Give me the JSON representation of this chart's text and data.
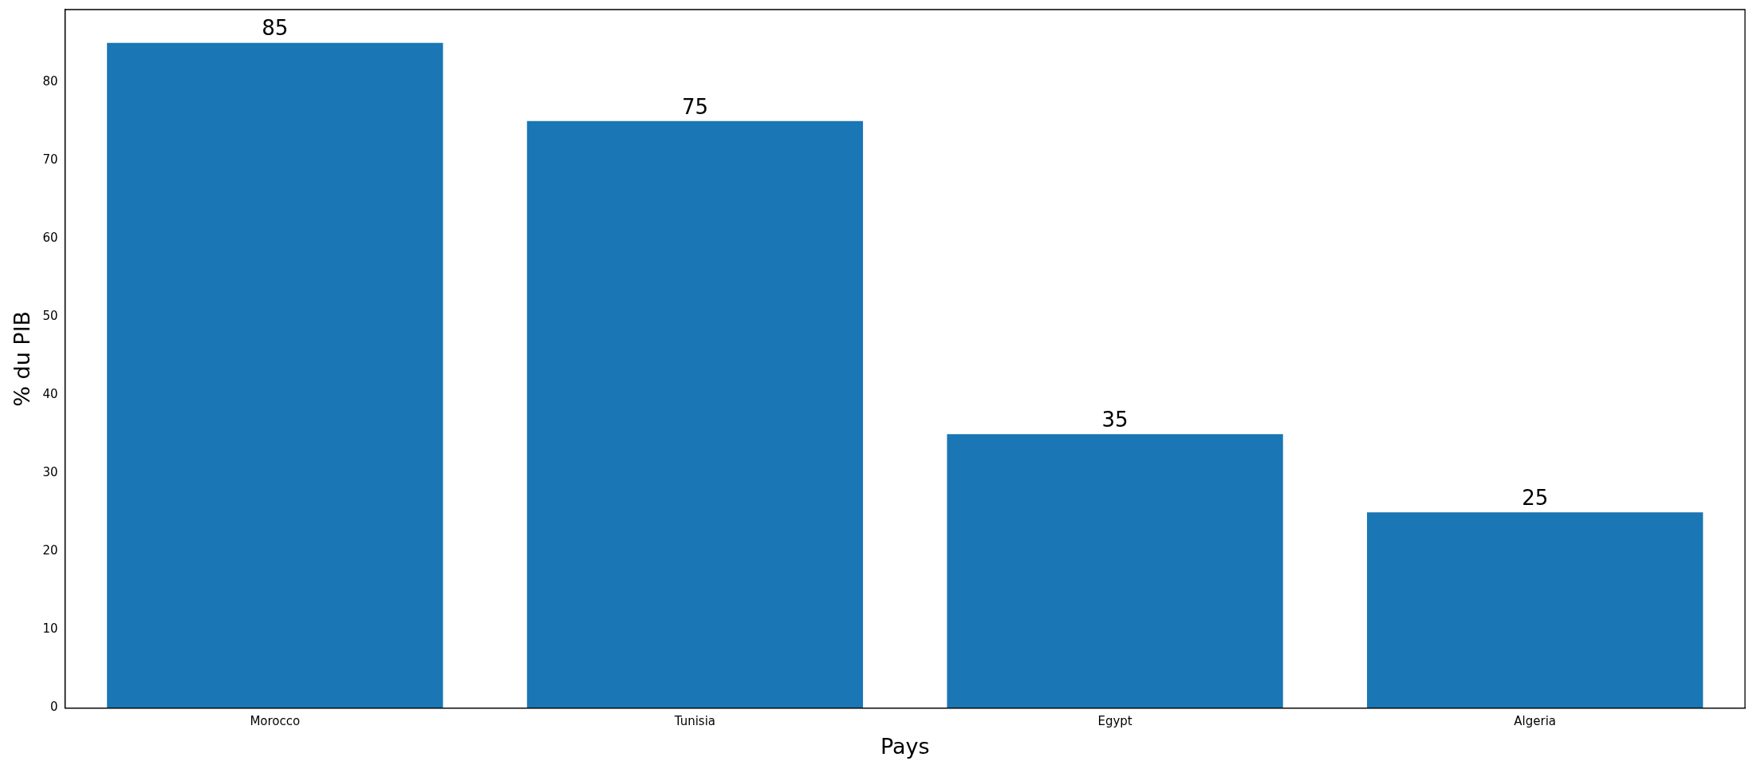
{
  "chart_data": {
    "type": "bar",
    "xlabel": "Pays",
    "ylabel": "% du PIB",
    "categories": [
      "Morocco",
      "Tunisia",
      "Egypt",
      "Algeria"
    ],
    "values": [
      85,
      75,
      35,
      25
    ],
    "color": "#1a76b4",
    "ylim": [
      0,
      89.25
    ],
    "yticks": [
      0,
      10,
      20,
      30,
      40,
      50,
      60,
      70,
      80
    ],
    "grid": false,
    "legend": false,
    "data_labels": true
  }
}
